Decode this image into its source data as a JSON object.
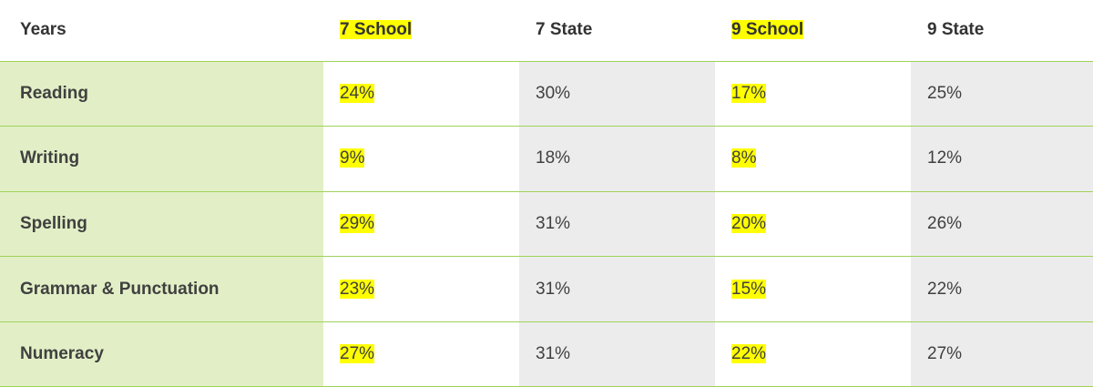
{
  "table": {
    "header": [
      "Years",
      "7 School",
      "7 State",
      "9 School",
      "9 State"
    ],
    "rows": [
      [
        "Reading",
        "24%",
        "30%",
        "17%",
        "25%"
      ],
      [
        "Writing",
        "9%",
        "18%",
        "8%",
        "12%"
      ],
      [
        "Spelling",
        "29%",
        "31%",
        "20%",
        "26%"
      ],
      [
        "Grammar & Punctuation",
        "23%",
        "31%",
        "15%",
        "22%"
      ],
      [
        "Numeracy",
        "27%",
        "31%",
        "22%",
        "27%"
      ]
    ]
  }
}
